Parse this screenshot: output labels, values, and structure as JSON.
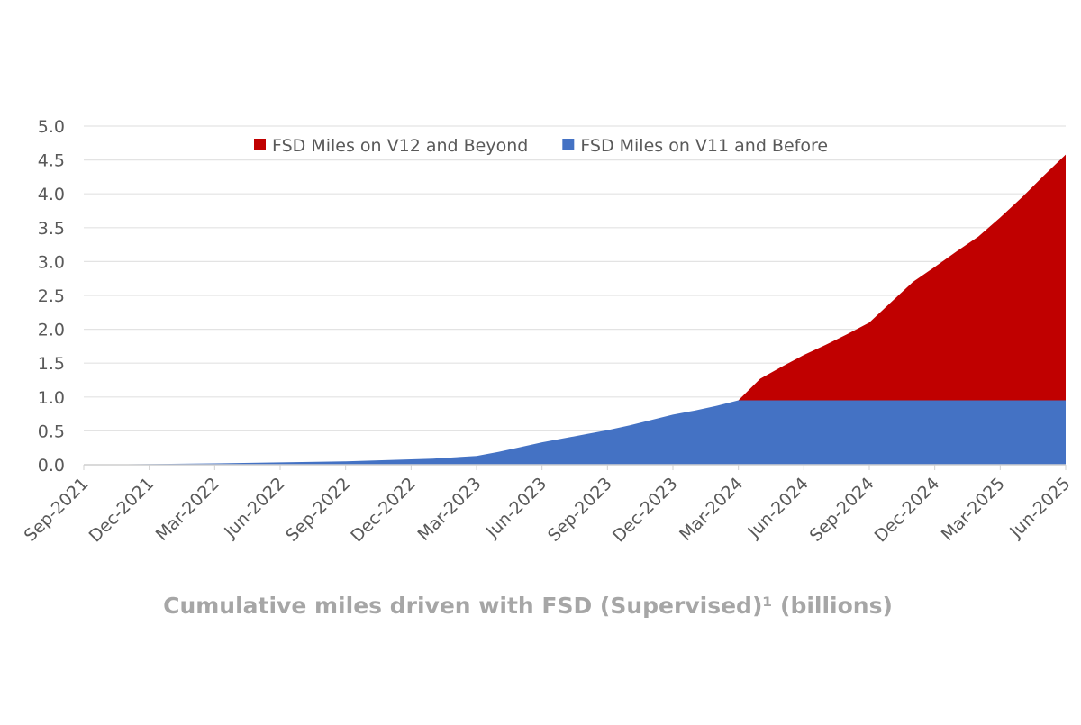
{
  "chart_data": {
    "type": "stacked-area",
    "title": "Cumulative miles driven with FSD (Supervised)¹ (billions)",
    "categories": [
      "Sep-2021",
      null,
      null,
      "Dec-2021",
      null,
      null,
      "Mar-2022",
      null,
      null,
      "Jun-2022",
      null,
      null,
      "Sep-2022",
      null,
      null,
      "Dec-2022",
      null,
      null,
      "Mar-2023",
      null,
      null,
      "Jun-2023",
      null,
      null,
      "Sep-2023",
      null,
      null,
      "Dec-2023",
      null,
      null,
      "Mar-2024",
      null,
      null,
      "Jun-2024",
      null,
      null,
      "Sep-2024",
      null,
      null,
      "Dec-2024",
      null,
      null,
      "Mar-2025",
      null,
      null,
      "Jun-2025"
    ],
    "series": [
      {
        "name": "FSD Miles on V11 and Before",
        "color": "#4472c4",
        "values": [
          0,
          0.003,
          0.006,
          0.01,
          0.013,
          0.017,
          0.02,
          0.025,
          0.03,
          0.035,
          0.04,
          0.045,
          0.05,
          0.06,
          0.07,
          0.08,
          0.09,
          0.11,
          0.13,
          0.19,
          0.26,
          0.33,
          0.39,
          0.45,
          0.51,
          0.58,
          0.66,
          0.74,
          0.8,
          0.87,
          0.95,
          0.95,
          0.95,
          0.95,
          0.95,
          0.95,
          0.95,
          0.95,
          0.95,
          0.95,
          0.95,
          0.95,
          0.95,
          0.95,
          0.95,
          0.95
        ]
      },
      {
        "name": "FSD Miles on V12 and Beyond",
        "color": "#c00000",
        "values": [
          0,
          0,
          0,
          0,
          0,
          0,
          0,
          0,
          0,
          0,
          0,
          0,
          0,
          0,
          0,
          0,
          0,
          0,
          0,
          0,
          0,
          0,
          0,
          0,
          0,
          0,
          0,
          0,
          0,
          0,
          0,
          0.32,
          0.5,
          0.67,
          0.82,
          0.98,
          1.15,
          1.45,
          1.75,
          1.97,
          2.2,
          2.42,
          2.7,
          3.0,
          3.32,
          3.63
        ]
      }
    ],
    "ylim": [
      0,
      5
    ],
    "yticks": [
      {
        "value": 0,
        "label": "0.0"
      },
      {
        "value": 0.5,
        "label": "0.5"
      },
      {
        "value": 1,
        "label": "1.0"
      },
      {
        "value": 1.5,
        "label": "1.5"
      },
      {
        "value": 2,
        "label": "2.0"
      },
      {
        "value": 2.5,
        "label": "2.5"
      },
      {
        "value": 3,
        "label": "3.0"
      },
      {
        "value": 3.5,
        "label": "3.5"
      },
      {
        "value": 4,
        "label": "4.0"
      },
      {
        "value": 4.5,
        "label": "4.5"
      },
      {
        "value": 5,
        "label": "5.0"
      }
    ],
    "grid": true,
    "legend": "top"
  }
}
